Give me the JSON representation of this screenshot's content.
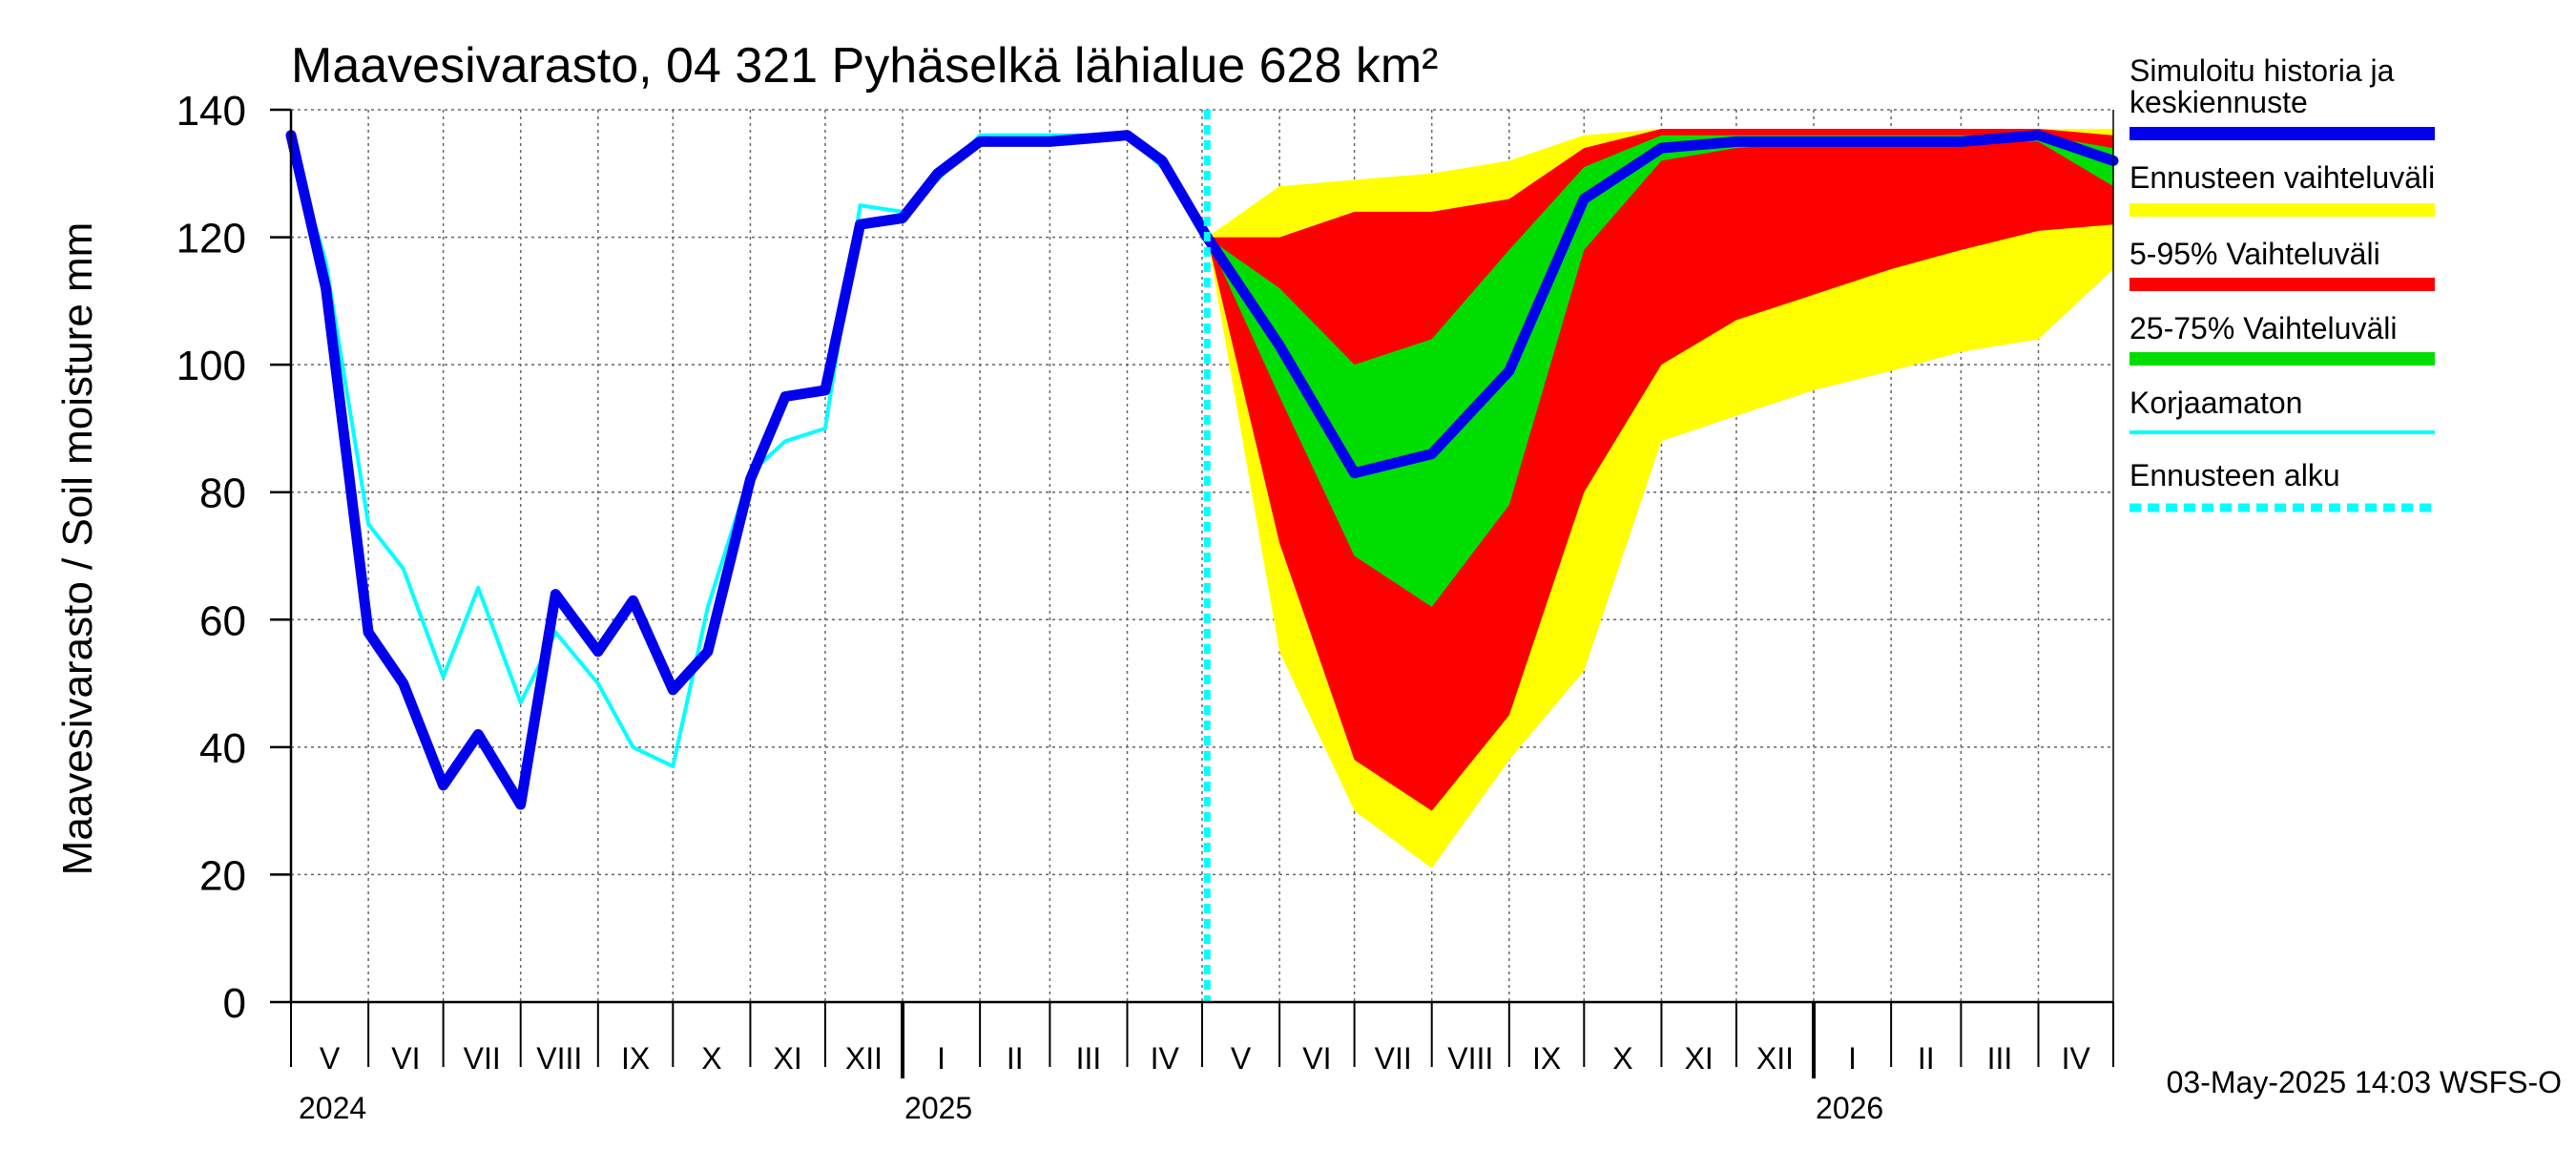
{
  "chart_data": {
    "type": "area",
    "title": "Maavesivarasto, 04 321 Pyhäselkä lähialue 628 km²",
    "ylabel": "Maavesivarasto / Soil moisture   mm",
    "ylim": [
      0,
      140
    ],
    "yticks": [
      "0",
      "20",
      "40",
      "60",
      "80",
      "100",
      "120",
      "140"
    ],
    "grid": true,
    "legend_position": "right",
    "months": [
      "V",
      "VI",
      "VII",
      "VIII",
      "IX",
      "X",
      "XI",
      "XII",
      "I",
      "II",
      "III",
      "IV",
      "V",
      "VI",
      "VII",
      "VIII",
      "IX",
      "X",
      "XI",
      "XII",
      "I",
      "II",
      "III",
      "IV"
    ],
    "years": [
      "2024",
      "2025",
      "2026"
    ],
    "x_range": [
      "2024-05-01",
      "2026-05-01"
    ],
    "forecast_start": "2025-05-03",
    "legend": [
      {
        "label": "Simuloitu historia ja keskiennuste",
        "color": "#0000ee"
      },
      {
        "label": "Ennusteen vaihteluväli",
        "color": "#ffff00"
      },
      {
        "label": "5-95% Vaihteluväli",
        "color": "#ff0000"
      },
      {
        "label": "25-75% Vaihteluväli",
        "color": "#00dd00"
      },
      {
        "label": "Korjaamaton",
        "color": "#00ffff"
      },
      {
        "label": "Ennusteen alku",
        "color": "#00ffff"
      }
    ],
    "history": {
      "dates": [
        "2024-05-01",
        "2024-05-15",
        "2024-06-01",
        "2024-06-15",
        "2024-07-01",
        "2024-07-15",
        "2024-08-01",
        "2024-08-15",
        "2024-09-01",
        "2024-09-15",
        "2024-10-01",
        "2024-10-15",
        "2024-11-01",
        "2024-11-15",
        "2024-12-01",
        "2024-12-15",
        "2025-01-01",
        "2025-01-15",
        "2025-02-01",
        "2025-03-01",
        "2025-04-01",
        "2025-04-15",
        "2025-05-03"
      ],
      "simulated": [
        136,
        112,
        58,
        50,
        34,
        42,
        31,
        64,
        55,
        63,
        49,
        55,
        82,
        95,
        96,
        122,
        123,
        130,
        135,
        135,
        136,
        132,
        120
      ],
      "uncorrected": [
        135,
        116,
        75,
        68,
        51,
        65,
        47,
        58,
        50,
        40,
        37,
        62,
        83,
        88,
        90,
        125,
        124,
        129,
        136,
        136,
        136,
        131,
        120
      ]
    },
    "forecast": {
      "dates": [
        "2025-05-03",
        "2025-06-01",
        "2025-07-01",
        "2025-08-01",
        "2025-09-01",
        "2025-10-01",
        "2025-11-01",
        "2025-12-01",
        "2026-01-01",
        "2026-02-01",
        "2026-03-01",
        "2026-04-01",
        "2026-05-01"
      ],
      "min": [
        120,
        55,
        30,
        21,
        38,
        52,
        88,
        92,
        96,
        99,
        102,
        104,
        115
      ],
      "p5": [
        120,
        72,
        38,
        30,
        45,
        80,
        100,
        107,
        111,
        115,
        118,
        121,
        122
      ],
      "p25": [
        120,
        95,
        70,
        62,
        78,
        118,
        132,
        134,
        135,
        135,
        135,
        135,
        128
      ],
      "median": [
        120,
        103,
        83,
        86,
        99,
        126,
        134,
        135,
        135,
        135,
        135,
        136,
        132
      ],
      "p75": [
        120,
        112,
        100,
        104,
        118,
        131,
        136,
        136,
        136,
        136,
        136,
        136,
        134
      ],
      "p95": [
        120,
        120,
        124,
        124,
        126,
        134,
        137,
        137,
        137,
        137,
        137,
        137,
        136
      ],
      "max": [
        120,
        128,
        129,
        130,
        132,
        136,
        137,
        137,
        137,
        137,
        137,
        137,
        137
      ]
    }
  },
  "footer": "03-May-2025 14:03 WSFS-O"
}
